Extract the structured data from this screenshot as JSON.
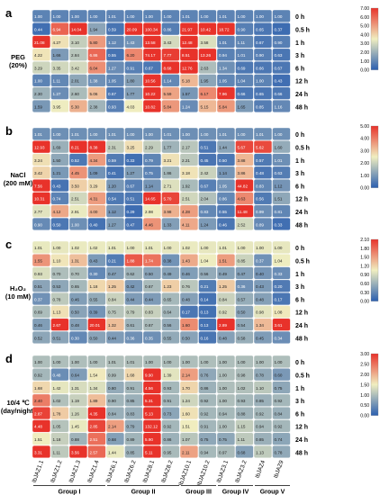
{
  "figure": {
    "genes": [
      "IbJAZ1.1",
      "IbJAZ1.2",
      "IbJAZ1.3",
      "IbJAZ1.4",
      "IbJAZ6.1",
      "IbJAZ6.2",
      "IbJAZ8.1",
      "IbJAZ8.2",
      "IbJAZ10.1",
      "IbJAZ10.2",
      "IbJAZ3.1",
      "IbJAZ3.2",
      "IbJAZ4",
      "IbJAZ9"
    ],
    "groups": [
      {
        "label": "Group I",
        "span": [
          0,
          3
        ]
      },
      {
        "label": "Group II",
        "span": [
          4,
          7
        ]
      },
      {
        "label": "Group III",
        "span": [
          8,
          9
        ]
      },
      {
        "label": "Group IV",
        "span": [
          10,
          11
        ]
      },
      {
        "label": "Group V",
        "span": [
          12,
          13
        ]
      }
    ],
    "timepoints": [
      "0 h",
      "0.5 h",
      "1 h",
      "3 h",
      "6 h",
      "12 h",
      "24 h",
      "48 h"
    ],
    "colorscale": {
      "low": "#2b5fb0",
      "mid": "#f0eec0",
      "high": "#e8322a"
    }
  },
  "chart_data": [
    {
      "type": "heatmap",
      "panel_label": "a",
      "treatment": [
        "PEG",
        "(20%)"
      ],
      "colorbar": {
        "min": 0,
        "max": 8,
        "ticks": [
          "0.00",
          "1.00",
          "2.00",
          "3.00",
          "4.00",
          "5.00",
          "6.00",
          "7.00"
        ]
      },
      "values": [
        [
          1.0,
          1.0,
          1.0,
          1.0,
          1.01,
          1.0,
          1.0,
          1.0,
          1.01,
          1.0,
          1.01,
          1.0,
          1.0,
          1.0
        ],
        [
          0.44,
          6.94,
          14.04,
          1.94,
          0.59,
          20.09,
          100.34,
          0.86,
          21.97,
          10.42,
          18.72,
          0.9,
          0.65,
          0.37
        ],
        [
          21.08,
          4.27,
          3.1,
          5.8,
          1.12,
          1.43,
          13.58,
          3.43,
          12.48,
          3.58,
          1.01,
          1.11,
          0.67,
          0.9
        ],
        [
          4.22,
          1.66,
          2.84,
          6.86,
          0.55,
          6.2,
          74.17,
          7.77,
          8.51,
          13.26,
          0.94,
          1.01,
          0.9,
          0.63
        ],
        [
          3.29,
          3.35,
          3.42,
          6.04,
          1.27,
          0.91,
          0.67,
          8.68,
          12.76,
          2.63,
          1.34,
          0.69,
          0.66,
          0.67
        ],
        [
          1.0,
          1.11,
          2.01,
          1.38,
          1.05,
          1.8,
          10.56,
          1.14,
          5.18,
          1.95,
          1.05,
          1.04,
          1.0,
          0.43
        ],
        [
          2.3,
          1.27,
          2.6,
          5.06,
          0.67,
          1.77,
          10.22,
          5.59,
          1.57,
          6.17,
          7.96,
          0.66,
          0.65,
          0.66
        ],
        [
          1.59,
          3.95,
          5.3,
          2.38,
          0.93,
          4.03,
          10.82,
          5.84,
          1.24,
          5.15,
          5.84,
          1.65,
          0.85,
          1.16
        ]
      ]
    },
    {
      "type": "heatmap",
      "panel_label": "b",
      "treatment": [
        "NaCl",
        "(200 mM)"
      ],
      "colorbar": {
        "min": 0,
        "max": 6,
        "ticks": [
          "0.00",
          "1.00",
          "2.00",
          "3.00",
          "4.00",
          "5.00"
        ]
      },
      "values": [
        [
          1.01,
          1.0,
          1.01,
          1.0,
          1.01,
          1.0,
          1.0,
          1.01,
          1.0,
          1.0,
          1.01,
          1.0,
          1.01,
          1.0
        ],
        [
          12.93,
          1.69,
          8.21,
          8.38,
          2.31,
          3.25,
          2.29,
          1.77,
          2.17,
          0.51,
          1.44,
          5.67,
          5.62,
          1.6
        ],
        [
          3.24,
          1.5,
          0.52,
          4.34,
          0.59,
          0.33,
          0.79,
          3.21,
          2.21,
          0.45,
          0.5,
          3.88,
          0.57,
          1.01
        ],
        [
          3.42,
          1.21,
          4.45,
          1.09,
          0.41,
          1.27,
          0.75,
          1.86,
          3.18,
          2.42,
          1.14,
          3.86,
          0.48,
          0.63
        ],
        [
          7.56,
          0.43,
          3.5,
          3.29,
          1.2,
          0.67,
          1.14,
          2.71,
          1.92,
          0.67,
          1.05,
          44.82,
          0.83,
          1.12
        ],
        [
          10.31,
          0.74,
          2.51,
          4.31,
          0.54,
          0.51,
          14.65,
          5.7,
          2.51,
          2.04,
          0.86,
          4.63,
          0.56,
          1.51
        ],
        [
          2.77,
          4.12,
          2.91,
          4.0,
          1.12,
          0.29,
          2.98,
          3.98,
          4.28,
          0.83,
          0.55,
          11.48,
          0.99,
          0.81
        ],
        [
          0.9,
          0.5,
          1.0,
          0.4,
          1.27,
          0.47,
          4.46,
          1.33,
          4.11,
          1.24,
          0.46,
          2.52,
          0.89,
          0.33
        ]
      ]
    },
    {
      "type": "heatmap",
      "panel_label": "c",
      "treatment": [
        "H₂O₂",
        "(10 mM)"
      ],
      "colorbar": {
        "min": 0,
        "max": 2.1,
        "ticks": [
          "0.00",
          "0.30",
          "0.60",
          "0.90",
          "1.20",
          "1.50",
          "1.80",
          "2.10"
        ]
      },
      "values": [
        [
          1.01,
          1.0,
          1.02,
          1.02,
          1.01,
          1.0,
          1.01,
          1.0,
          1.02,
          1.0,
          1.01,
          1.0,
          1.0,
          1.0
        ],
        [
          1.55,
          1.1,
          1.31,
          0.43,
          0.21,
          1.88,
          1.74,
          0.38,
          1.43,
          1.04,
          1.51,
          0.85,
          0.37,
          1.04
        ],
        [
          0.93,
          0.7,
          0.7,
          0.3,
          0.47,
          0.62,
          0.5,
          0.49,
          0.46,
          0.56,
          0.49,
          0.47,
          0.4,
          0.33
        ],
        [
          0.51,
          0.53,
          0.65,
          1.18,
          1.25,
          0.42,
          0.67,
          1.23,
          0.76,
          0.21,
          1.25,
          0.36,
          0.43,
          0.2
        ],
        [
          0.37,
          0.78,
          0.46,
          0.55,
          0.84,
          0.44,
          0.44,
          0.65,
          0.48,
          0.14,
          0.84,
          0.57,
          0.48,
          0.17
        ],
        [
          0.69,
          1.13,
          0.5,
          0.39,
          0.75,
          0.79,
          0.83,
          0.64,
          0.17,
          0.13,
          0.92,
          0.5,
          0.98,
          1.08
        ],
        [
          0.46,
          2.67,
          0.48,
          20.01,
          1.32,
          0.61,
          0.67,
          0.56,
          1.6,
          0.13,
          2.89,
          0.54,
          1.34,
          3.61
        ],
        [
          0.52,
          0.51,
          0.3,
          0.5,
          0.44,
          0.36,
          0.35,
          0.55,
          0.5,
          0.16,
          0.48,
          0.58,
          0.45,
          0.34
        ]
      ]
    },
    {
      "type": "heatmap",
      "panel_label": "d",
      "treatment": [
        "10/4 ℃",
        "(day/night)"
      ],
      "colorbar": {
        "min": 0,
        "max": 3,
        "ticks": [
          "0.00",
          "0.50",
          "1.00",
          "1.50",
          "2.00",
          "2.50",
          "3.00"
        ]
      },
      "values": [
        [
          1.0,
          1.0,
          1.0,
          1.0,
          1.01,
          1.01,
          1.0,
          1.0,
          1.0,
          1.0,
          1.0,
          1.0,
          1.0,
          1.0
        ],
        [
          0.92,
          0.48,
          0.64,
          1.54,
          0.99,
          1.68,
          9.9,
          1.39,
          2.14,
          0.76,
          1.0,
          0.98,
          0.78,
          0.6
        ],
        [
          1.68,
          1.42,
          1.31,
          1.34,
          0.8,
          0.91,
          4.56,
          0.93,
          1.7,
          0.86,
          1.0,
          1.02,
          1.1,
          0.75
        ],
        [
          2.4,
          1.02,
          1.19,
          1.89,
          0.9,
          0.85,
          5.31,
          0.91,
          1.24,
          0.92,
          1.0,
          0.93,
          0.85,
          0.92
        ],
        [
          2.87,
          1.78,
          1.26,
          4.35,
          0.84,
          0.83,
          5.13,
          0.73,
          1.6,
          0.92,
          0.94,
          0.88,
          0.92,
          0.84
        ],
        [
          4.48,
          1.05,
          1.45,
          2.85,
          2.14,
          0.79,
          132.12,
          0.92,
          1.51,
          0.91,
          1.0,
          1.15,
          0.94,
          0.92
        ],
        [
          1.51,
          1.18,
          0.88,
          2.51,
          0.68,
          0.89,
          5.9,
          0.86,
          1.07,
          0.75,
          0.75,
          1.11,
          0.85,
          0.74
        ],
        [
          3.31,
          1.11,
          3.56,
          2.57,
          1.44,
          0.85,
          5.11,
          0.95,
          2.11,
          0.94,
          0.97,
          0.68,
          1.13,
          0.78
        ]
      ]
    }
  ]
}
